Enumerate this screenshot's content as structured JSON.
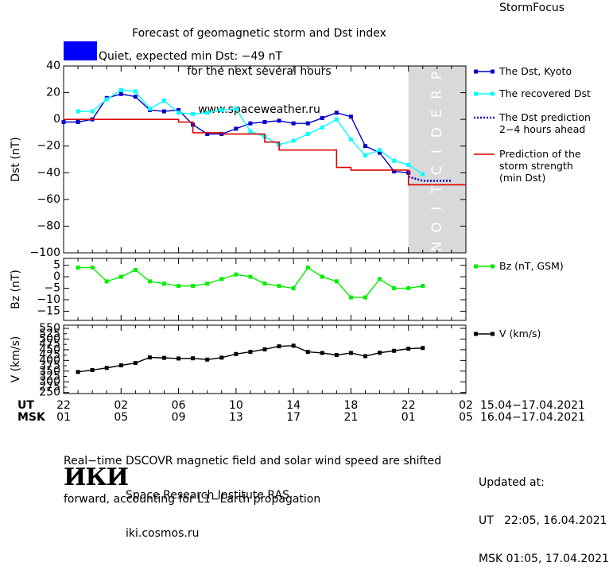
{
  "header": {
    "title_lines": [
      "Forecast of geomagnetic storm and Dst index",
      "for the next several hours",
      "www.spaceweather.ru"
    ],
    "brand": "StormFocus"
  },
  "status": {
    "text": "Quiet, expected min Dst: −49 nT",
    "color": "#0000ff"
  },
  "time_axis": {
    "ut_label": "UT",
    "msk_label": "MSK",
    "ut_ticks": [
      "22",
      "02",
      "06",
      "10",
      "14",
      "18",
      "22",
      "02"
    ],
    "msk_ticks": [
      "01",
      "05",
      "09",
      "13",
      "17",
      "21",
      "01",
      "05"
    ],
    "tick_hours": [
      0,
      4,
      8,
      12,
      16,
      20,
      24,
      28
    ],
    "range_ut": "15.04−17.04.2021",
    "range_msk": "16.04−17.04.2021",
    "prediction_band_hours": [
      24,
      28
    ],
    "prediction_label": "PREDICTION"
  },
  "chart_data": [
    {
      "type": "line",
      "ylabel": "Dst (nT)",
      "ylim": [
        -100,
        40
      ],
      "yticks": [
        "40",
        "20",
        "0",
        "−20",
        "−40",
        "−60",
        "−80",
        "−100"
      ],
      "ytick_values": [
        40,
        20,
        0,
        -20,
        -40,
        -60,
        -80,
        -100
      ],
      "series": [
        {
          "name": "The Dst, Kyoto",
          "color": "#0000cc",
          "style": "line-square",
          "x": [
            0,
            1,
            2,
            3,
            4,
            5,
            6,
            7,
            8,
            9,
            10,
            11,
            12,
            13,
            14,
            15,
            16,
            17,
            18,
            19,
            20,
            21,
            22,
            23,
            24
          ],
          "y": [
            -2,
            -2,
            0,
            16,
            19,
            17,
            7,
            6,
            7,
            -4,
            -11,
            -11,
            -7,
            -3,
            -2,
            -1,
            -3,
            -3,
            1,
            5,
            2,
            -20,
            -25,
            -39,
            -40
          ]
        },
        {
          "name": "The recovered Dst",
          "color": "#00ffff",
          "style": "line-square",
          "x": [
            1,
            2,
            3,
            4,
            5,
            6,
            7,
            8,
            9,
            10,
            11,
            12,
            13,
            14,
            15,
            16,
            17,
            18,
            19,
            20,
            21,
            22,
            23,
            24,
            25
          ],
          "y": [
            6,
            6,
            15,
            22,
            21,
            8,
            14,
            5,
            4,
            5,
            7,
            8,
            -9,
            -13,
            -19,
            -16,
            -11,
            -6,
            0,
            -15,
            -27,
            -23,
            -31,
            -34,
            -41
          ]
        },
        {
          "name": "The Dst prediction\n2−4 hours ahead",
          "color": "#0000cc",
          "style": "dotted",
          "x": [
            24,
            25,
            26,
            27
          ],
          "y": [
            -43,
            -46,
            -46,
            -46
          ]
        },
        {
          "name": "Prediction of the\nstorm strength\n(min Dst)",
          "color": "#dd0000",
          "style": "step",
          "x": [
            0,
            7,
            8,
            9,
            11,
            13,
            14,
            15,
            18,
            19,
            20,
            23,
            24,
            28
          ],
          "y": [
            0,
            0,
            -2,
            -10,
            -11,
            -11,
            -17,
            -23,
            -23,
            -36,
            -38,
            -38,
            -49,
            -49
          ]
        }
      ]
    },
    {
      "type": "line",
      "ylabel": "Bz (nT)",
      "ylim": [
        -19,
        8
      ],
      "yticks": [
        "5",
        "0",
        "−5",
        "−10",
        "−15"
      ],
      "ytick_values": [
        5,
        0,
        -5,
        -10,
        -15
      ],
      "series": [
        {
          "name": "Bz (nT, GSM)",
          "color": "#00ee00",
          "style": "line-square",
          "x": [
            1,
            2,
            3,
            4,
            5,
            6,
            7,
            8,
            9,
            10,
            11,
            12,
            13,
            14,
            15,
            16,
            17,
            18,
            19,
            20,
            21,
            22,
            23,
            24,
            25
          ],
          "y": [
            4,
            4,
            -2,
            0,
            3,
            -2,
            -3,
            -4,
            -4,
            -3,
            -1,
            1,
            0,
            -3,
            -4,
            -5,
            4,
            0,
            -2,
            -9,
            -9,
            -1,
            -5,
            -5,
            -4
          ]
        }
      ]
    },
    {
      "type": "line",
      "ylabel": "V (km/s)",
      "ylim": [
        245,
        565
      ],
      "yticks": [
        "550",
        "500",
        "450",
        "400",
        "350",
        "300",
        "250"
      ],
      "ytick_values": [
        550,
        500,
        450,
        400,
        350,
        300,
        250
      ],
      "yticks_minor": [
        "525",
        "475",
        "425",
        "375",
        "325",
        "275"
      ],
      "ytick_minor_values": [
        525,
        475,
        425,
        375,
        325,
        275
      ],
      "series": [
        {
          "name": "V (km/s)",
          "color": "#000000",
          "style": "line-square",
          "x": [
            1,
            2,
            3,
            4,
            5,
            6,
            7,
            8,
            9,
            10,
            11,
            12,
            13,
            14,
            15,
            16,
            17,
            18,
            19,
            20,
            21,
            22,
            23,
            24,
            25
          ],
          "y": [
            346,
            355,
            365,
            377,
            388,
            414,
            412,
            409,
            410,
            404,
            413,
            430,
            440,
            452,
            466,
            469,
            440,
            435,
            425,
            435,
            420,
            436,
            445,
            455,
            458
          ]
        }
      ]
    }
  ],
  "footer": {
    "note_lines": [
      "Real−time DSCOVR magnetic field and solar wind speed are shifted",
      "forward, accounting for L1−Earth propagation"
    ],
    "logo": "ИКИ",
    "institute_lines": [
      "Space Research Institute RAS",
      "iki.cosmos.ru"
    ],
    "updated_lines": [
      "Updated at:",
      "UT   22:05, 16.04.2021",
      "MSK 01:05, 17.04.2021"
    ]
  }
}
